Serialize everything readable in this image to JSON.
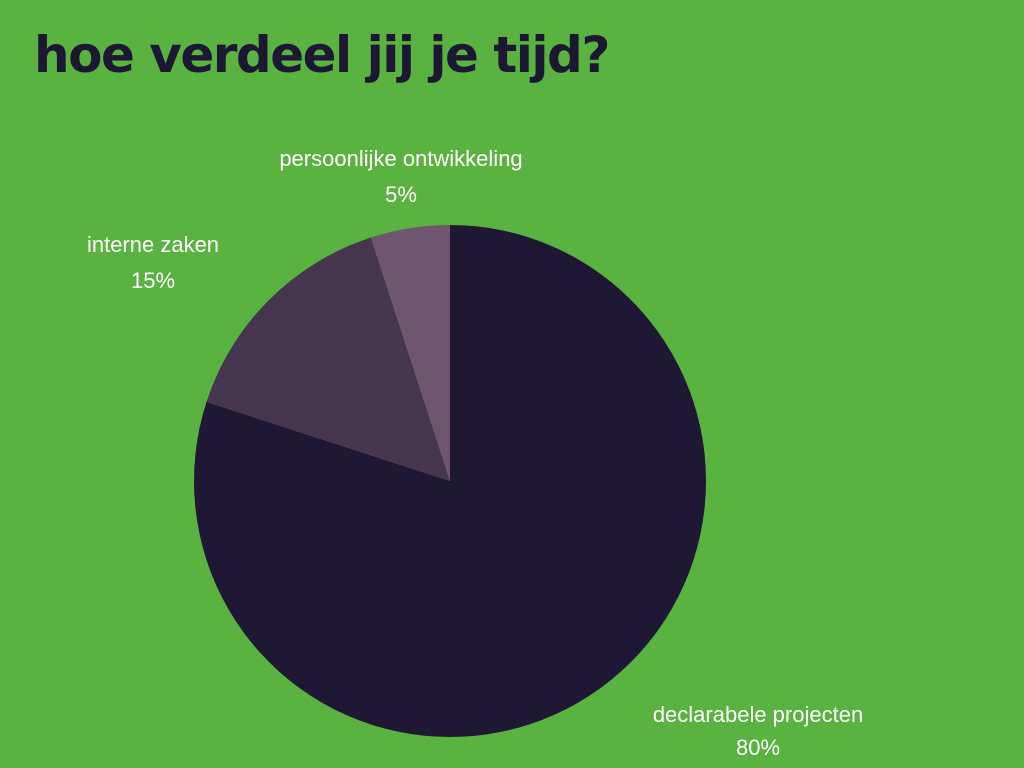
{
  "title": "hoe verdeel jij je tijd?",
  "chart_data": {
    "type": "pie",
    "title": "hoe verdeel jij je tijd?",
    "slices": [
      {
        "label": "declarabele projecten",
        "value": 80,
        "value_label": "80%",
        "color": "#1e1834"
      },
      {
        "label": "interne zaken",
        "value": 15,
        "value_label": "15%",
        "color": "#46354f"
      },
      {
        "label": "persoonlijke ontwikkeling",
        "value": 5,
        "value_label": "5%",
        "color": "#705570"
      }
    ],
    "legend": "none",
    "start_angle": "12 o'clock, clockwise"
  }
}
